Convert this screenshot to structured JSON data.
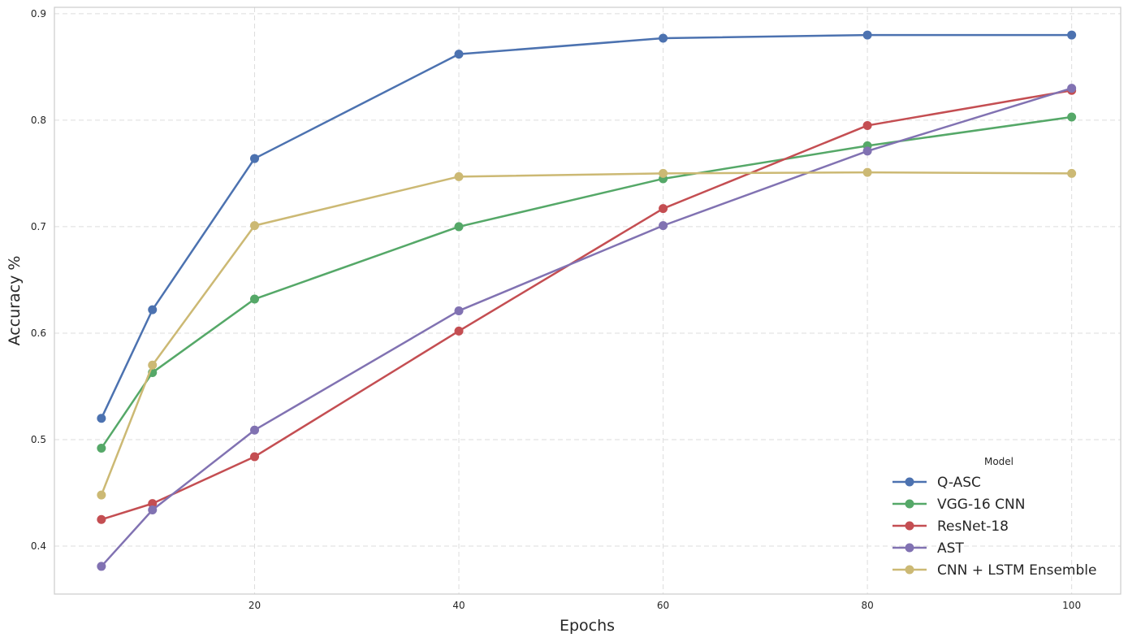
{
  "chart_data": {
    "type": "line",
    "title": "",
    "xlabel": "Epochs",
    "ylabel": "Accuracy %",
    "x": [
      5,
      10,
      20,
      40,
      60,
      80,
      100
    ],
    "xlim": [
      0.4,
      104.8
    ],
    "ylim": [
      0.355,
      0.906
    ],
    "xticks": [
      20,
      40,
      60,
      80,
      100
    ],
    "xtick_labels": [
      "20",
      "40",
      "60",
      "80",
      "100"
    ],
    "yticks": [
      0.4,
      0.5,
      0.6,
      0.7,
      0.8,
      0.9
    ],
    "ytick_labels": [
      "0.4",
      "0.5",
      "0.6",
      "0.7",
      "0.8",
      "0.9"
    ],
    "grid": true,
    "legend": {
      "title": "Model",
      "placement": "bottom-right"
    },
    "series": [
      {
        "name": "Q-ASC",
        "color": "#4C72B0",
        "values": [
          0.52,
          0.622,
          0.764,
          0.862,
          0.877,
          0.88,
          0.88
        ]
      },
      {
        "name": "VGG-16 CNN",
        "color": "#55A868",
        "values": [
          0.492,
          0.563,
          0.632,
          0.7,
          0.745,
          0.776,
          0.803
        ]
      },
      {
        "name": "ResNet-18",
        "color": "#C44E52",
        "values": [
          0.425,
          0.44,
          0.484,
          0.602,
          0.717,
          0.795,
          0.828
        ]
      },
      {
        "name": "AST",
        "color": "#8172B2",
        "values": [
          0.381,
          0.434,
          0.509,
          0.621,
          0.701,
          0.771,
          0.83
        ]
      },
      {
        "name": "CNN + LSTM Ensemble",
        "color": "#CCB974",
        "values": [
          0.448,
          0.57,
          0.701,
          0.747,
          0.75,
          0.751,
          0.75
        ]
      }
    ]
  }
}
